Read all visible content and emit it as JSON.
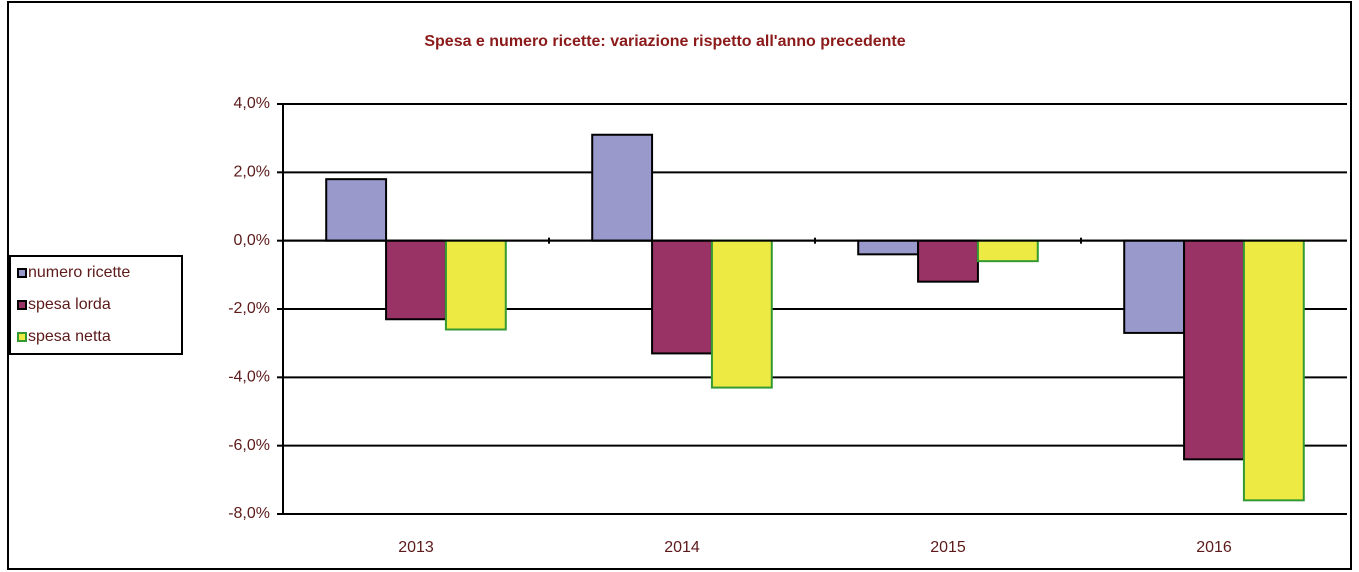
{
  "chart_data": {
    "type": "bar",
    "title": "Spesa e numero ricette: variazione rispetto all'anno precedente",
    "categories": [
      "2013",
      "2014",
      "2015",
      "2016"
    ],
    "series": [
      {
        "name": "numero ricette",
        "color": "#9999cc",
        "edgecolor": "#000000",
        "values": [
          1.8,
          3.1,
          -0.4,
          -2.7
        ]
      },
      {
        "name": "spesa lorda",
        "color": "#993366",
        "edgecolor": "#000000",
        "values": [
          -2.3,
          -3.3,
          -1.2,
          -6.4
        ]
      },
      {
        "name": "spesa netta",
        "color": "#eeea44",
        "edgecolor": "#339933",
        "values": [
          -2.6,
          -4.3,
          -0.6,
          -7.6
        ]
      }
    ],
    "ylim": [
      -8,
      4
    ],
    "yticks": [
      {
        "value": 4,
        "label": "4,0%"
      },
      {
        "value": 2,
        "label": "2,0%"
      },
      {
        "value": 0,
        "label": "0,0%"
      },
      {
        "value": -2,
        "label": "-2,0%"
      },
      {
        "value": -4,
        "label": "-4,0%"
      },
      {
        "value": -6,
        "label": "-6,0%"
      },
      {
        "value": -8,
        "label": "-8,0%"
      }
    ],
    "grid": true,
    "legend": "left"
  }
}
